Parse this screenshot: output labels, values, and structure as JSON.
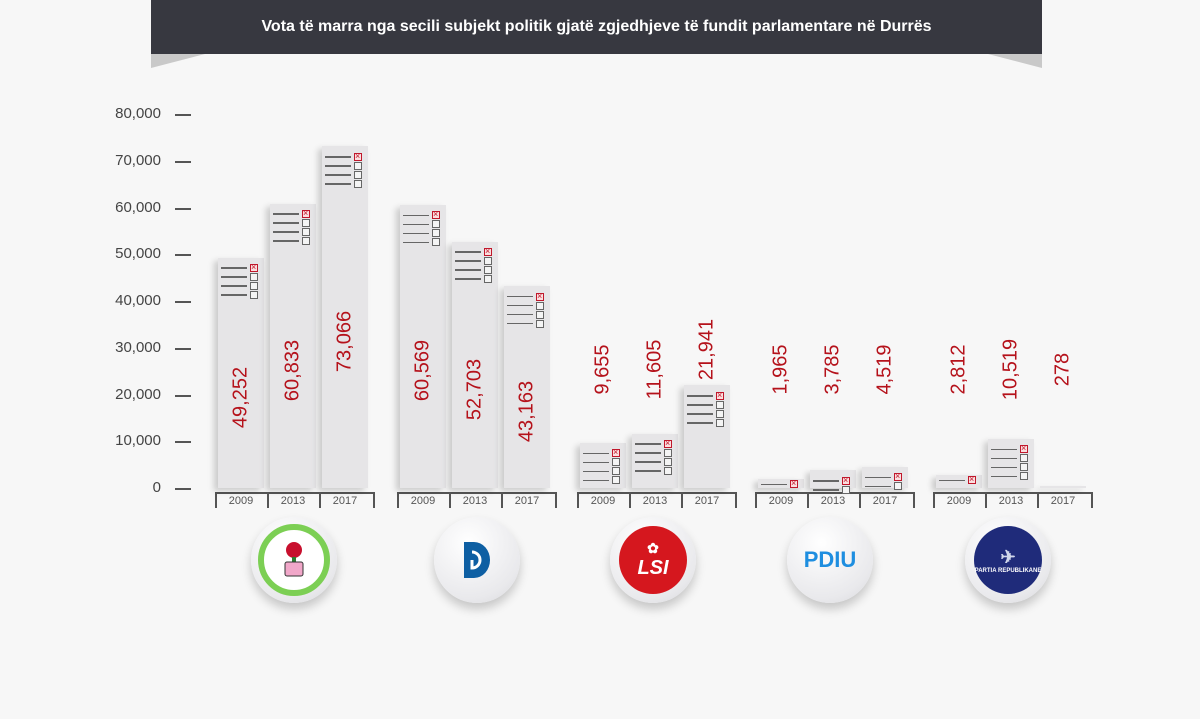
{
  "header": {
    "title": "Vota të marra nga secili subjekt politik gjatë zgjedhjeve të fundit parlamentare në Durrës"
  },
  "chart_data": {
    "type": "bar",
    "title": "Vota të marra nga secili subjekt politik gjatë zgjedhjeve të fundit parlamentare në Durrës",
    "xlabel": "",
    "ylabel": "",
    "ylim": [
      0,
      80000
    ],
    "yticks": [
      "0",
      "10,000",
      "20,000",
      "30,000",
      "40,000",
      "50,000",
      "60,000",
      "70,000",
      "80,000"
    ],
    "categories": [
      "2009",
      "2013",
      "2017"
    ],
    "grid": false,
    "legend": "party logos below each group",
    "series": [
      {
        "name": "PS (Partia Socialiste e Shqipërisë)",
        "values": [
          49252,
          60833,
          73066
        ],
        "labels": [
          "49,252",
          "60,833",
          "73,066"
        ]
      },
      {
        "name": "PD",
        "values": [
          60569,
          52703,
          43163
        ],
        "labels": [
          "60,569",
          "52,703",
          "43,163"
        ]
      },
      {
        "name": "LSI",
        "values": [
          9655,
          11605,
          21941
        ],
        "labels": [
          "9,655",
          "11,605",
          "21,941"
        ]
      },
      {
        "name": "PDIU",
        "values": [
          1965,
          3785,
          4519
        ],
        "labels": [
          "1,965",
          "3,785",
          "4,519"
        ]
      },
      {
        "name": "Partia Republikane",
        "values": [
          2812,
          10519,
          278
        ],
        "labels": [
          "2,812",
          "10,519",
          "278"
        ]
      }
    ]
  },
  "logos": {
    "ps": {
      "text": "PARTIA SOCIALISTE E SHQIPËRISË • 1991 •",
      "icon": "rose-fist-icon"
    },
    "pd": {
      "text": "D",
      "icon": "pd-logo-icon"
    },
    "lsi": {
      "text": "LSI",
      "icon": "rose-icon"
    },
    "pdiu": {
      "text": "PDIU"
    },
    "pr": {
      "text": "PARTIA REPUBLIKANE",
      "icon": "eagle-icon"
    }
  },
  "colors": {
    "banner": "#373840",
    "value_text": "#b5121b",
    "bar": "#e6e5e7",
    "background": "#f7f7f7"
  }
}
